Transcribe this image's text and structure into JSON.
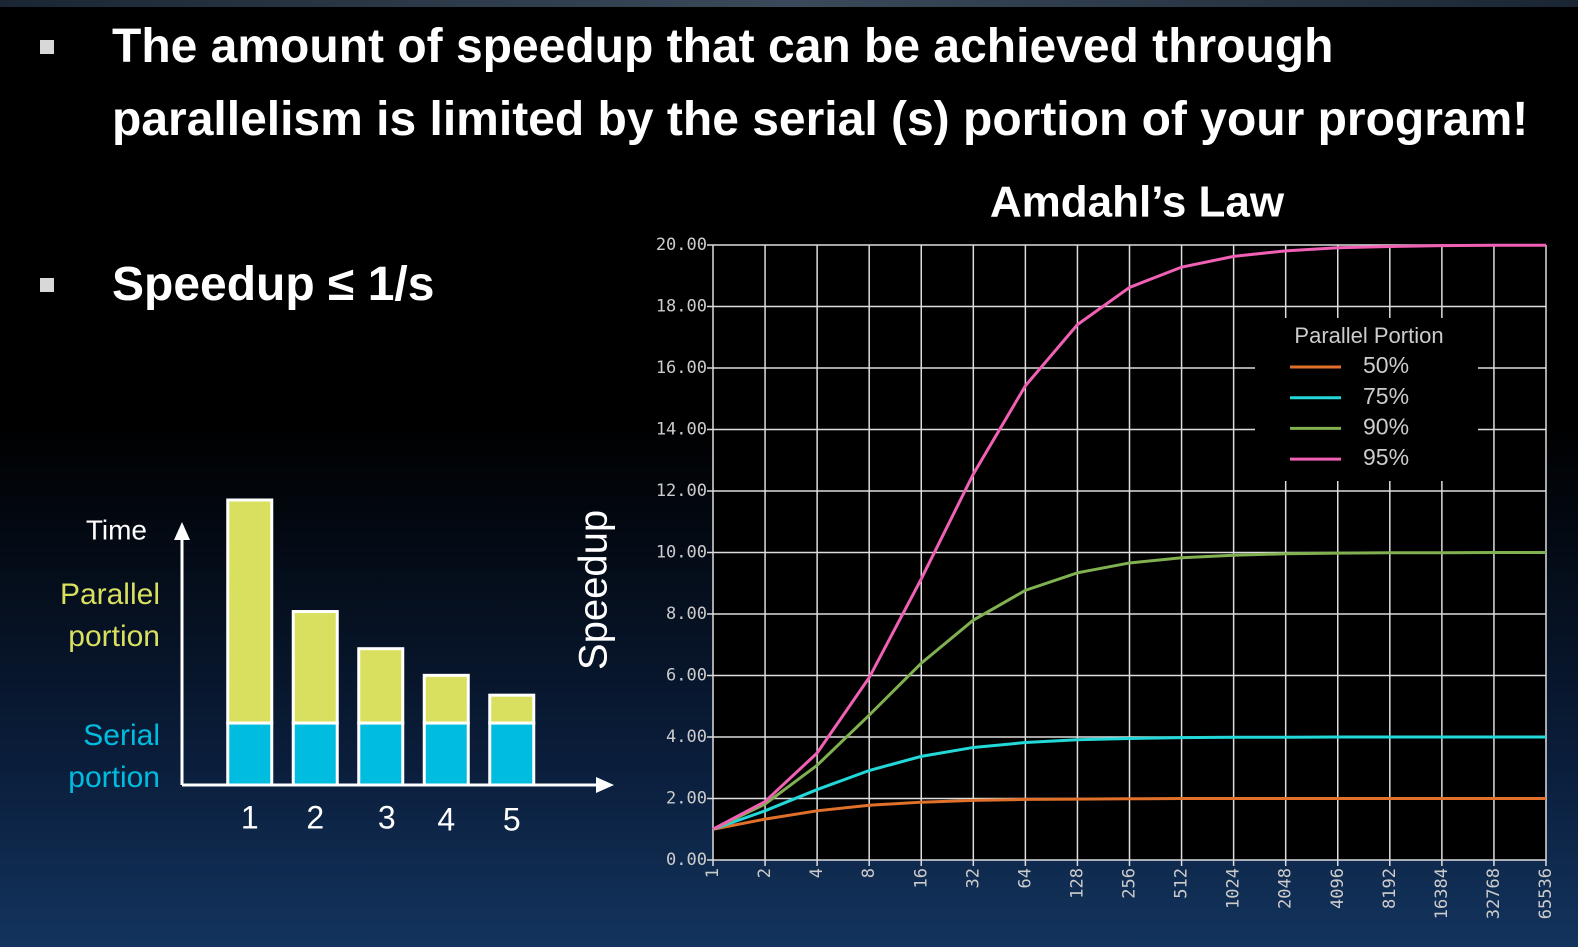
{
  "bullets": [
    "The amount of speedup that can be achieved through parallelism is limited by the serial (s) portion of your program!",
    "Speedup ≤ 1/s"
  ],
  "chart_data": [
    {
      "type": "bar",
      "stacked": true,
      "y_label": "Time",
      "categories": [
        1,
        2,
        3,
        4,
        5
      ],
      "series": [
        {
          "name": "Serial portion",
          "color": "#00bde0",
          "values": [
            1,
            1,
            1,
            1,
            1
          ]
        },
        {
          "name": "Parallel portion",
          "color": "#d9df5f",
          "values": [
            3.6,
            1.8,
            1.2,
            0.77,
            0.45
          ]
        }
      ]
    },
    {
      "type": "line",
      "title": "Amdahl’s Law",
      "y_label": "Speedup",
      "categories": [
        1,
        2,
        4,
        8,
        16,
        32,
        64,
        128,
        256,
        512,
        1024,
        2048,
        4096,
        8192,
        16384,
        32768,
        65536
      ],
      "ylim": [
        0,
        20
      ],
      "yticks": [
        {
          "value": 0,
          "label": "0.00"
        },
        {
          "value": 2,
          "label": "2.00"
        },
        {
          "value": 4,
          "label": "4.00"
        },
        {
          "value": 6,
          "label": "6.00"
        },
        {
          "value": 8,
          "label": "8.00"
        },
        {
          "value": 10,
          "label": "10.00"
        },
        {
          "value": 12,
          "label": "12.00"
        },
        {
          "value": 14,
          "label": "14.00"
        },
        {
          "value": 16,
          "label": "16.00"
        },
        {
          "value": 18,
          "label": "18.00"
        },
        {
          "value": 20,
          "label": "20.00"
        }
      ],
      "grid": true,
      "legend": "upper right",
      "legend_title": "Parallel Portion",
      "series": [
        {
          "name": "50%",
          "color": "#e0702a",
          "values": [
            1,
            1.33,
            1.6,
            1.78,
            1.88,
            1.94,
            1.97,
            1.98,
            1.99,
            2,
            2,
            2,
            2,
            2,
            2,
            2,
            2
          ]
        },
        {
          "name": "75%",
          "color": "#22d8d8",
          "values": [
            1,
            1.6,
            2.29,
            2.91,
            3.37,
            3.66,
            3.82,
            3.91,
            3.95,
            3.98,
            3.99,
            3.99,
            4,
            4,
            4,
            4,
            4
          ]
        },
        {
          "name": "90%",
          "color": "#80b050",
          "values": [
            1,
            1.82,
            3.08,
            4.71,
            6.4,
            7.8,
            8.77,
            9.34,
            9.66,
            9.83,
            9.91,
            9.96,
            9.98,
            9.99,
            9.99,
            10,
            10
          ]
        },
        {
          "name": "95%",
          "color": "#f060b4",
          "values": [
            1,
            1.9,
            3.48,
            5.93,
            9.14,
            12.55,
            15.42,
            17.41,
            18.62,
            19.28,
            19.63,
            19.81,
            19.91,
            19.95,
            19.98,
            19.99,
            19.99
          ]
        }
      ]
    }
  ]
}
